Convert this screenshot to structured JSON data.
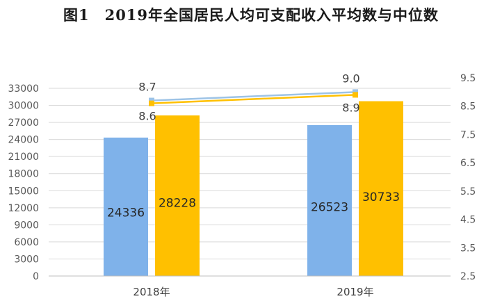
{
  "chart_data": {
    "type": "bar",
    "title": "图1　2019年全国居民人均可支配收入平均数与中位数",
    "categories": [
      "2018年",
      "2019年"
    ],
    "series": [
      {
        "values": [
          24336,
          26523
        ],
        "color": "#7fb2ea",
        "kind": "bar",
        "axis": "left"
      },
      {
        "values": [
          28228,
          30733
        ],
        "color": "#ffc000",
        "kind": "bar",
        "axis": "left"
      },
      {
        "values": [
          8.7,
          9.0
        ],
        "color": "#9dc3e6",
        "kind": "line",
        "axis": "right"
      },
      {
        "values": [
          8.6,
          8.9
        ],
        "color": "#ffc000",
        "kind": "line",
        "axis": "right"
      }
    ],
    "ylim": [
      0,
      33000
    ],
    "yticks": [
      "33000",
      "30000",
      "27000",
      "24000",
      "21000",
      "18000",
      "15000",
      "12000",
      "9000",
      "6000",
      "3000",
      "0"
    ],
    "y2lim": [
      2.5,
      9.5
    ],
    "y2ticks": [
      "9.5",
      "8.5",
      "7.5",
      "6.5",
      "5.5",
      "4.5",
      "3.5",
      "2.5"
    ],
    "grid": true,
    "legend": "none"
  }
}
